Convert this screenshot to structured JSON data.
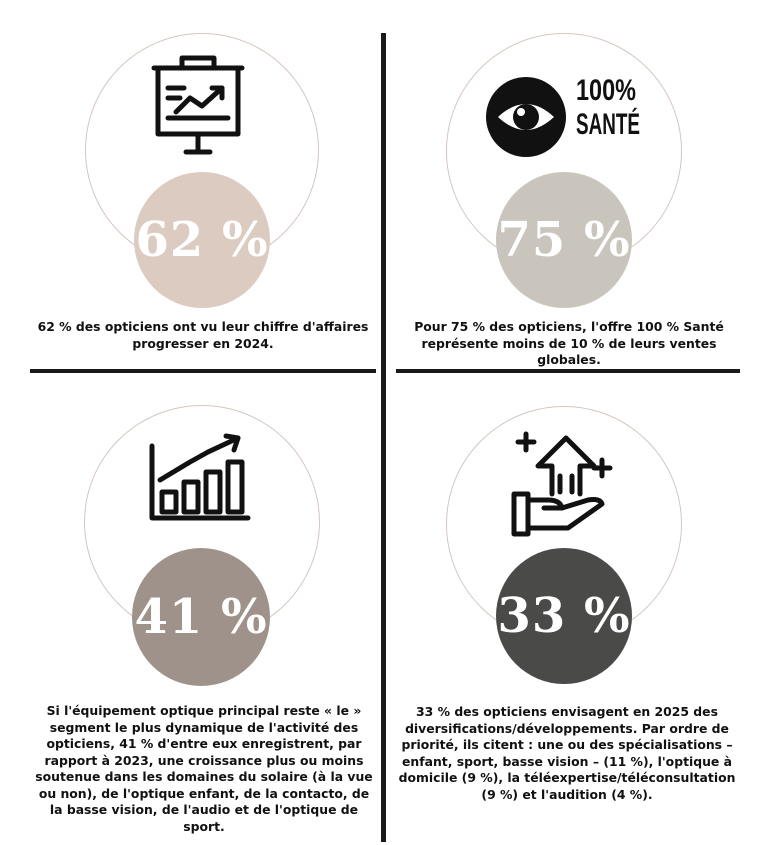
{
  "panels": [
    {
      "stat": "62 %",
      "stat_color": "#dccbc1",
      "icon": "presentation-board-chart-icon",
      "caption_pre": "62 % des opticiens ont vu leur ",
      "caption_bold": "chiffre d'affaires",
      "caption_post": " progresser en 2024."
    },
    {
      "stat": "75 %",
      "stat_color": "#c9c4bc",
      "icon": "eye-icon",
      "logo_text_1": "100%",
      "logo_text_2": "SANTÉ",
      "caption_pre": "Pour 75 % des opticiens, ",
      "caption_bold": "l'offre 100 % Santé",
      "caption_post": " représente moins de 10 % de leurs ventes globales."
    },
    {
      "stat": "41 %",
      "stat_color": "#9e928a",
      "icon": "growth-bar-chart-icon",
      "caption_pre": "Si l'équipement optique principal reste « le » segment le plus dynamique de l'activité des opticiens, 41 % d'entre eux enregistrent, par rapport à 2023, ",
      "caption_bold": "une croissance plus ou moins soutenue dans les domaines du solaire (à la vue ou non), de l'optique enfant, de la contacto, de la basse vision, de l'audio et de l'optique de sport",
      "caption_post": "."
    },
    {
      "stat": "33 %",
      "stat_color": "#4a4a48",
      "icon": "hand-growth-arrow-icon",
      "caption_pre": "33 % des opticiens envisagent en 2025 des ",
      "caption_bold": "diversifications/développements",
      "caption_post": ". Par ordre de priorité, ils citent : une ou des spécialisations – enfant, sport, basse vision – (11 %), l'optique à domicile (9 %), la téléexpertise/téléconsultation (9 %) et l'audition (4 %)."
    }
  ]
}
